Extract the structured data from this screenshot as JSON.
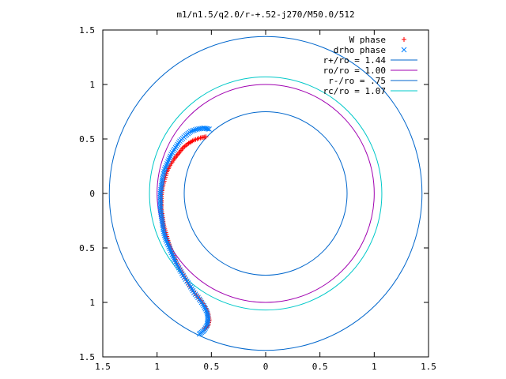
{
  "chart_data": {
    "type": "scatter",
    "title": "m1/n1.5/q2.0/r-+.52-j270/M50.0/512",
    "xlim": [
      -1.5,
      1.5
    ],
    "ylim": [
      -1.5,
      1.5
    ],
    "x_ticks": [
      -1.5,
      -1,
      -0.5,
      0,
      0.5,
      1,
      1.5
    ],
    "y_ticks": [
      -1.5,
      -1,
      -0.5,
      0,
      0.5,
      1,
      1.5
    ],
    "x_tick_labels": [
      "1.5",
      "1",
      "0.5",
      "0",
      "0.5",
      "1",
      "1.5"
    ],
    "y_tick_labels": [
      "1.5",
      "1",
      "0.5",
      "0",
      "0.5",
      "1",
      "1.5"
    ],
    "grid": false,
    "legend_position": "top-right",
    "series": [
      {
        "name": "W phase",
        "kind": "points",
        "marker": "plus",
        "color": "#ff0000",
        "points": [
          [
            -0.55,
            0.52
          ],
          [
            -0.6,
            0.51
          ],
          [
            -0.66,
            0.49
          ],
          [
            -0.71,
            0.46
          ],
          [
            -0.76,
            0.42
          ],
          [
            -0.8,
            0.37
          ],
          [
            -0.84,
            0.32
          ],
          [
            -0.88,
            0.26
          ],
          [
            -0.91,
            0.2
          ],
          [
            -0.93,
            0.13
          ],
          [
            -0.95,
            0.06
          ],
          [
            -0.96,
            -0.01
          ],
          [
            -0.96,
            -0.08
          ],
          [
            -0.96,
            -0.15
          ],
          [
            -0.95,
            -0.22
          ],
          [
            -0.94,
            -0.29
          ],
          [
            -0.92,
            -0.36
          ],
          [
            -0.9,
            -0.43
          ],
          [
            -0.88,
            -0.5
          ],
          [
            -0.85,
            -0.57
          ],
          [
            -0.82,
            -0.64
          ],
          [
            -0.78,
            -0.71
          ],
          [
            -0.74,
            -0.78
          ],
          [
            -0.7,
            -0.85
          ],
          [
            -0.65,
            -0.92
          ],
          [
            -0.6,
            -0.98
          ],
          [
            -0.56,
            -1.04
          ],
          [
            -0.53,
            -1.1
          ],
          [
            -0.52,
            -1.16
          ],
          [
            -0.53,
            -1.21
          ],
          [
            -0.56,
            -1.24
          ]
        ]
      },
      {
        "name": "drho phase",
        "kind": "points",
        "marker": "cross",
        "color": "#0080ff",
        "points": [
          [
            -0.52,
            0.59
          ],
          [
            -0.57,
            0.6
          ],
          [
            -0.63,
            0.59
          ],
          [
            -0.69,
            0.57
          ],
          [
            -0.74,
            0.53
          ],
          [
            -0.79,
            0.48
          ],
          [
            -0.83,
            0.42
          ],
          [
            -0.87,
            0.36
          ],
          [
            -0.9,
            0.29
          ],
          [
            -0.93,
            0.22
          ],
          [
            -0.95,
            0.14
          ],
          [
            -0.96,
            0.07
          ],
          [
            -0.97,
            0.0
          ],
          [
            -0.97,
            -0.07
          ],
          [
            -0.97,
            -0.14
          ],
          [
            -0.96,
            -0.21
          ],
          [
            -0.95,
            -0.28
          ],
          [
            -0.94,
            -0.35
          ],
          [
            -0.92,
            -0.42
          ],
          [
            -0.89,
            -0.49
          ],
          [
            -0.86,
            -0.56
          ],
          [
            -0.83,
            -0.63
          ],
          [
            -0.79,
            -0.7
          ],
          [
            -0.75,
            -0.77
          ],
          [
            -0.7,
            -0.84
          ],
          [
            -0.66,
            -0.91
          ],
          [
            -0.61,
            -0.97
          ],
          [
            -0.57,
            -1.03
          ],
          [
            -0.54,
            -1.09
          ],
          [
            -0.53,
            -1.15
          ],
          [
            -0.54,
            -1.21
          ],
          [
            -0.57,
            -1.26
          ],
          [
            -0.61,
            -1.29
          ]
        ]
      },
      {
        "name": "r+/ro = 1.44",
        "kind": "circle",
        "radius": 1.44,
        "color": "#0066cc"
      },
      {
        "name": "ro/ro = 1.00",
        "kind": "circle",
        "radius": 1.0,
        "color": "#a000b0"
      },
      {
        "name": "r-/ro = .75",
        "kind": "circle",
        "radius": 0.75,
        "color": "#0066cc"
      },
      {
        "name": "rc/ro = 1.07",
        "kind": "circle",
        "radius": 1.07,
        "color": "#00c8c8"
      }
    ]
  }
}
